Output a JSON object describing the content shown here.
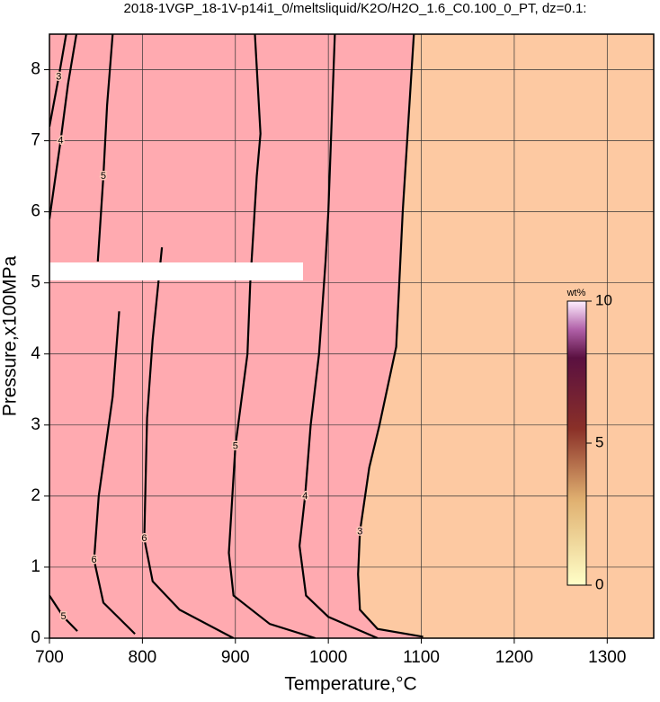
{
  "chart_data": {
    "type": "contour",
    "title": "2018-1VGP_18-1V-p14i1_0/meltsliquid/K2O/H2O_1.6_C0.100_0_PT, dz=0.1:",
    "x_label": "Temperature,°C",
    "y_label": "Pressure,x100MPa",
    "xlim": [
      700,
      1350
    ],
    "ylim": [
      0,
      8.5
    ],
    "xticks": [
      700,
      800,
      900,
      1000,
      1100,
      1200,
      1300
    ],
    "yticks": [
      0,
      1,
      2,
      3,
      4,
      5,
      6,
      7,
      8
    ],
    "grid": true,
    "contours": [
      {
        "level": 3,
        "x": [
          1092,
          1080,
          1073,
          1055,
          1044,
          1034,
          1032,
          1034,
          1053,
          1102
        ],
        "y": [
          8.5,
          6,
          4.1,
          3,
          2.4,
          1.5,
          0.9,
          0.4,
          0.13,
          0.02
        ]
      },
      {
        "level": 4,
        "x": [
          1007,
          1000,
          997,
          990,
          981,
          975,
          969,
          976,
          1000,
          1053
        ],
        "y": [
          8.5,
          6,
          5.3,
          4,
          3,
          2,
          1.3,
          0.6,
          0.3,
          0
        ]
      },
      {
        "level": 5,
        "x": [
          921,
          927,
          923,
          916,
          913,
          900,
          893,
          898,
          937,
          986
        ],
        "y": [
          8.5,
          7.1,
          6.5,
          5,
          4,
          2.7,
          1.2,
          0.6,
          0.2,
          0
        ]
      },
      {
        "level": 6,
        "x": [
          821,
          811,
          805,
          802,
          811,
          840,
          898
        ],
        "y": [
          5.5,
          4.2,
          3.1,
          1.4,
          0.8,
          0.4,
          0
        ]
      },
      {
        "level": 6,
        "x": [
          775,
          768,
          753,
          748,
          758,
          792
        ],
        "y": [
          4.6,
          3.4,
          2.0,
          1.1,
          0.5,
          0.06
        ]
      },
      {
        "level": 5,
        "x": [
          768,
          762,
          758,
          752
        ],
        "y": [
          8.5,
          7.5,
          6.5,
          5.3
        ]
      },
      {
        "level": 4,
        "x": [
          729,
          720,
          712,
          700
        ],
        "y": [
          8.5,
          7.8,
          7.0,
          5.9
        ]
      },
      {
        "level": 3,
        "x": [
          718,
          710,
          700
        ],
        "y": [
          8.5,
          7.9,
          7.2
        ]
      },
      {
        "level": 5,
        "x": [
          700,
          715,
          730
        ],
        "y": [
          0.6,
          0.3,
          0.1
        ]
      }
    ],
    "colorbar": {
      "label": "wt%",
      "lim": [
        0,
        10
      ],
      "ticks": [
        0,
        5,
        10
      ]
    }
  }
}
